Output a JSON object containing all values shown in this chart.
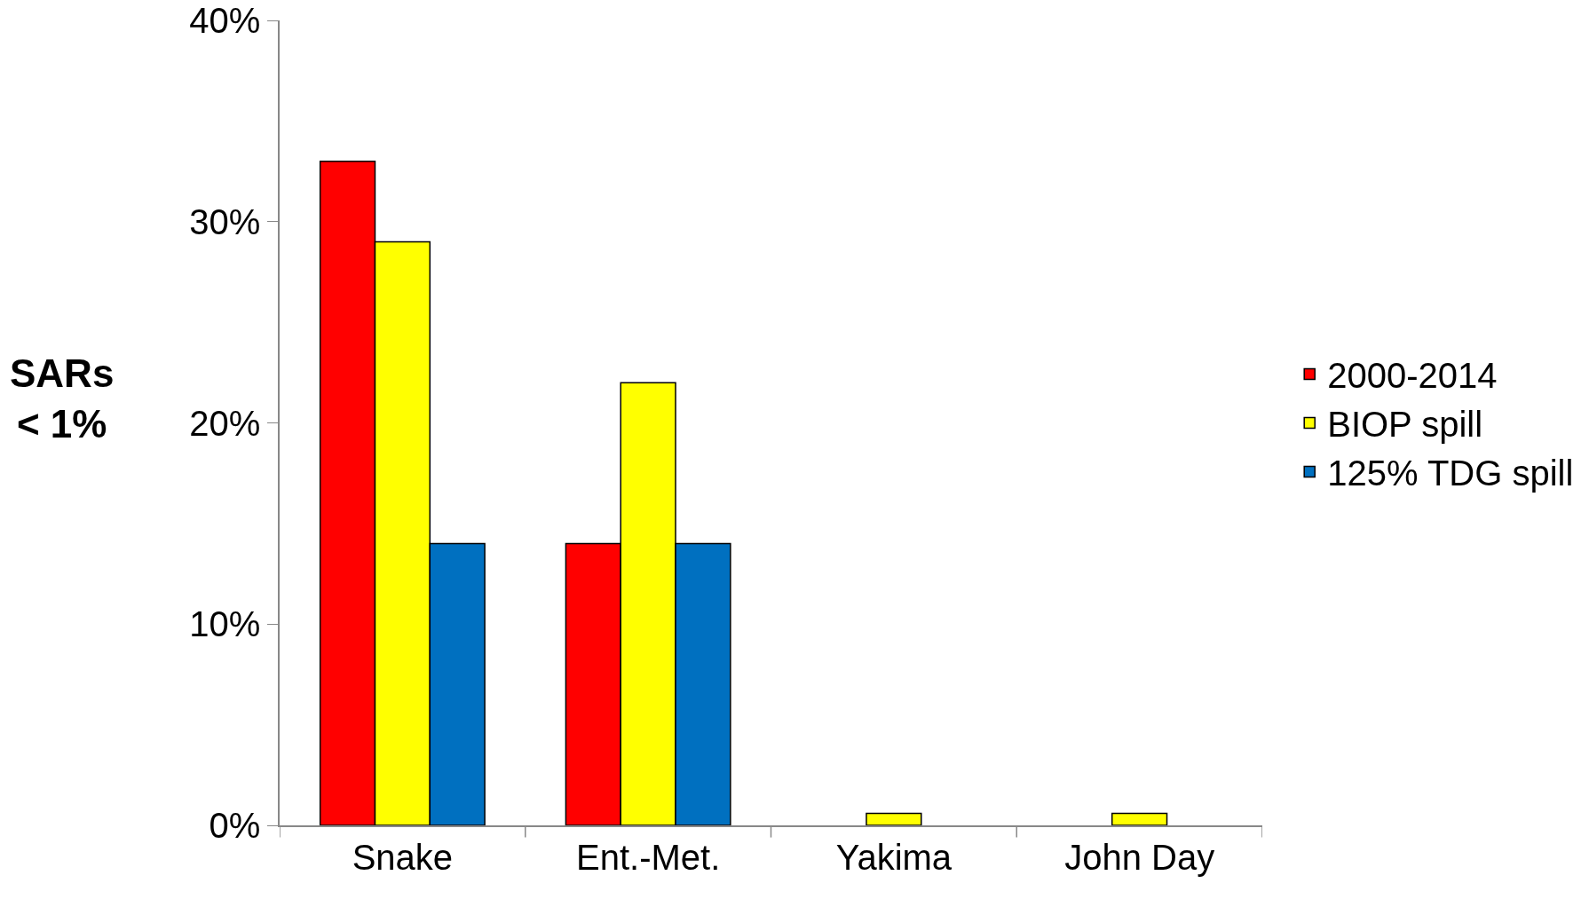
{
  "chart_data": {
    "type": "bar",
    "ylabel": "SARs\n< 1%",
    "categories": [
      "Snake",
      "Ent.-Met.",
      "Yakima",
      "John Day"
    ],
    "series": [
      {
        "name": "2000-2014",
        "color": "#ff0000",
        "values": [
          33,
          14,
          null,
          null
        ]
      },
      {
        "name": "BIOP spill",
        "color": "#ffff00",
        "values": [
          29,
          22,
          0.6,
          0.6
        ]
      },
      {
        "name": "125% TDG spill",
        "color": "#0070c0",
        "values": [
          14,
          14,
          null,
          null
        ]
      }
    ],
    "ylim": [
      0,
      40
    ],
    "yticks": [
      {
        "value": 0,
        "label": "0%"
      },
      {
        "value": 10,
        "label": "10%"
      },
      {
        "value": 20,
        "label": "20%"
      },
      {
        "value": 30,
        "label": "30%"
      },
      {
        "value": 40,
        "label": "40%"
      }
    ],
    "legend": "right"
  }
}
